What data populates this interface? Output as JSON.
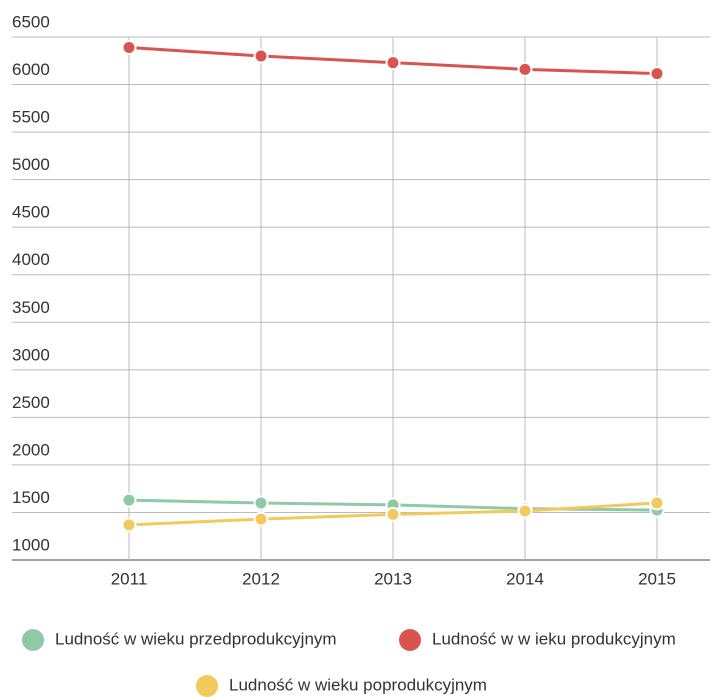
{
  "chart_data": {
    "type": "line",
    "categories": [
      "2011",
      "2012",
      "2013",
      "2014",
      "2015"
    ],
    "series": [
      {
        "name": "Ludność w wieku przedprodukcyjnym",
        "color": "#8ecaa6",
        "values": [
          1630,
          1600,
          1580,
          1540,
          1525
        ]
      },
      {
        "name": "Ludność w w ieku produkcyjnym",
        "color": "#d9534f",
        "values": [
          6390,
          6300,
          6230,
          6160,
          6115
        ]
      },
      {
        "name": "Ludność w wieku poprodukcyjnym",
        "color": "#f2c95c",
        "values": [
          1370,
          1430,
          1480,
          1515,
          1600
        ]
      }
    ],
    "ylim": [
      1000,
      6500
    ],
    "yticks": [
      1000,
      1500,
      2000,
      2500,
      3000,
      3500,
      4000,
      4500,
      5000,
      5500,
      6000,
      6500
    ],
    "grid": true,
    "legend": "bottom"
  }
}
